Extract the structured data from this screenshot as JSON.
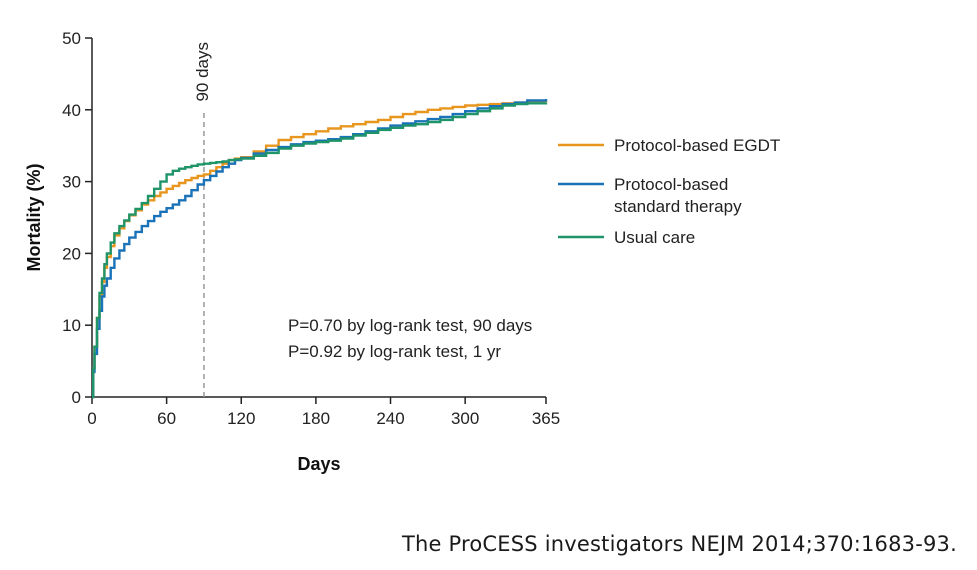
{
  "chart_data": {
    "type": "line",
    "xlabel": "Days",
    "ylabel": "Mortality (%)",
    "xlim": [
      0,
      365
    ],
    "ylim": [
      0,
      50
    ],
    "xticks": [
      0,
      60,
      120,
      180,
      240,
      300,
      365
    ],
    "yticks": [
      0,
      10,
      20,
      30,
      40,
      50
    ],
    "grid": false,
    "legend_position": "right",
    "reference_line": {
      "x": 90,
      "label": "90 days"
    },
    "annotations": [
      "P=0.70 by log-rank test, 90 days",
      "P=0.92 by log-rank test, 1 yr"
    ],
    "series": [
      {
        "name": "Protocol-based EGDT",
        "color": "#e8961e",
        "x": [
          0,
          1,
          2,
          4,
          6,
          8,
          10,
          12,
          15,
          18,
          22,
          26,
          30,
          35,
          40,
          45,
          50,
          55,
          60,
          65,
          70,
          75,
          80,
          85,
          90,
          95,
          100,
          105,
          110,
          115,
          120,
          130,
          140,
          150,
          160,
          170,
          180,
          190,
          200,
          210,
          220,
          230,
          240,
          250,
          260,
          270,
          280,
          290,
          300,
          310,
          320,
          330,
          340,
          350,
          365
        ],
        "y": [
          0,
          4,
          7,
          11,
          14,
          16,
          18,
          19.5,
          21,
          22.5,
          23.5,
          24.5,
          25.3,
          26,
          26.8,
          27.4,
          28,
          28.5,
          29,
          29.4,
          29.8,
          30.2,
          30.5,
          30.8,
          31,
          31.5,
          32,
          32.5,
          33,
          33.2,
          33.4,
          34.2,
          35,
          35.8,
          36.2,
          36.6,
          37,
          37.4,
          37.7,
          38,
          38.3,
          38.6,
          39,
          39.4,
          39.7,
          40,
          40.2,
          40.4,
          40.6,
          40.7,
          40.8,
          40.9,
          41,
          41.2,
          41.4
        ]
      },
      {
        "name": "Protocol-based standard therapy",
        "color": "#1a72b8",
        "x": [
          0,
          1,
          2,
          4,
          6,
          8,
          10,
          12,
          15,
          18,
          22,
          26,
          30,
          35,
          40,
          45,
          50,
          55,
          60,
          65,
          70,
          75,
          80,
          85,
          90,
          95,
          100,
          105,
          110,
          115,
          120,
          130,
          140,
          150,
          160,
          170,
          180,
          190,
          200,
          210,
          220,
          230,
          240,
          250,
          260,
          270,
          280,
          290,
          300,
          310,
          320,
          330,
          340,
          350,
          365
        ],
        "y": [
          0,
          3.5,
          6,
          9.5,
          12,
          14,
          15.5,
          16.5,
          18,
          19.3,
          20.4,
          21.3,
          22.2,
          23,
          23.8,
          24.5,
          25.2,
          25.8,
          26.3,
          26.8,
          27.4,
          28,
          28.8,
          29.6,
          30.2,
          30.8,
          31.4,
          32,
          32.5,
          33,
          33.3,
          33.9,
          34.4,
          34.8,
          35.2,
          35.5,
          35.7,
          35.9,
          36.2,
          36.6,
          37,
          37.4,
          37.8,
          38.1,
          38.4,
          38.7,
          39,
          39.4,
          39.8,
          40.2,
          40.5,
          40.8,
          41,
          41.3,
          41.5
        ]
      },
      {
        "name": "Usual care",
        "color": "#1f9468",
        "x": [
          0,
          1,
          2,
          4,
          6,
          8,
          10,
          12,
          15,
          18,
          22,
          26,
          30,
          35,
          40,
          45,
          50,
          55,
          60,
          65,
          70,
          75,
          80,
          85,
          90,
          95,
          100,
          105,
          110,
          115,
          120,
          130,
          140,
          150,
          160,
          170,
          180,
          190,
          200,
          210,
          220,
          230,
          240,
          250,
          260,
          270,
          280,
          290,
          300,
          310,
          320,
          330,
          340,
          350,
          365
        ],
        "y": [
          0,
          4,
          7,
          11,
          14.5,
          16.5,
          18.5,
          20,
          21.5,
          22.8,
          23.8,
          24.6,
          25.4,
          26.2,
          27,
          28,
          29,
          30,
          31,
          31.5,
          31.8,
          32,
          32.2,
          32.4,
          32.5,
          32.6,
          32.7,
          32.8,
          33,
          33.1,
          33.2,
          33.6,
          34,
          34.6,
          35,
          35.3,
          35.5,
          35.7,
          36,
          36.4,
          36.8,
          37.2,
          37.5,
          37.8,
          38,
          38.3,
          38.6,
          39,
          39.4,
          39.8,
          40.2,
          40.6,
          40.8,
          40.9,
          41
        ]
      }
    ]
  },
  "caption": "The ProCESS investigators NEJM 2014;370:1683-93."
}
